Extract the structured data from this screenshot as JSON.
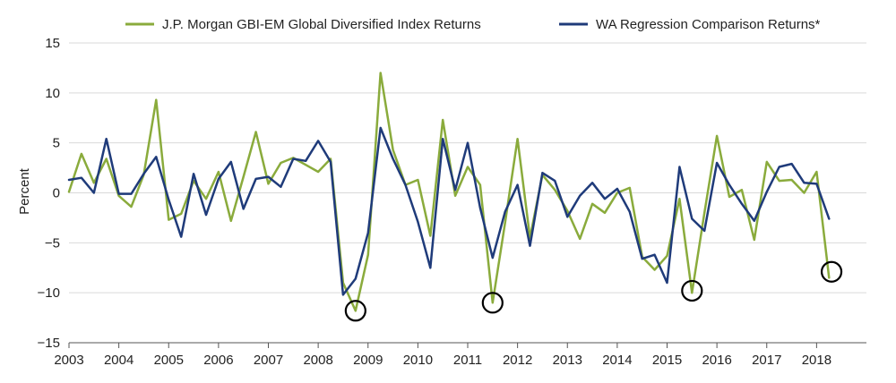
{
  "chart_data": {
    "type": "line",
    "title": "",
    "xlabel": "",
    "ylabel": "Percent",
    "ylim": [
      -15,
      15
    ],
    "yticks": [
      15,
      10,
      5,
      0,
      -5,
      -10,
      -15
    ],
    "yticks_labels": [
      "15",
      "10",
      "5",
      "0",
      "−5",
      "−10",
      "−15"
    ],
    "xlim": [
      2003,
      2019
    ],
    "xticks": [
      2003,
      2004,
      2005,
      2006,
      2007,
      2008,
      2009,
      2010,
      2011,
      2012,
      2013,
      2014,
      2015,
      2016,
      2017,
      2018
    ],
    "grid": "horizontal",
    "legend_position": "top",
    "colors": {
      "gbi": "#8aab3c",
      "wa": "#1f3b7a",
      "grid": "#d9d9d9",
      "circle": "#000000"
    },
    "series": [
      {
        "name": "J.P. Morgan GBI-EM Global Diversified Index Returns",
        "key": "gbi",
        "x": [
          2003.0,
          2003.25,
          2003.5,
          2003.75,
          2004.0,
          2004.25,
          2004.5,
          2004.75,
          2005.0,
          2005.25,
          2005.5,
          2005.75,
          2006.0,
          2006.25,
          2006.5,
          2006.75,
          2007.0,
          2007.25,
          2007.5,
          2007.75,
          2008.0,
          2008.25,
          2008.5,
          2008.75,
          2009.0,
          2009.25,
          2009.5,
          2009.75,
          2010.0,
          2010.25,
          2010.5,
          2010.75,
          2011.0,
          2011.25,
          2011.5,
          2011.75,
          2012.0,
          2012.25,
          2012.5,
          2012.75,
          2013.0,
          2013.25,
          2013.5,
          2013.75,
          2014.0,
          2014.25,
          2014.5,
          2014.75,
          2015.0,
          2015.25,
          2015.5,
          2015.75,
          2016.0,
          2016.25,
          2016.5,
          2016.75,
          2017.0,
          2017.25,
          2017.5,
          2017.75,
          2018.0,
          2018.25
        ],
        "values": [
          0.1,
          3.9,
          1.0,
          3.4,
          -0.3,
          -1.4,
          1.8,
          9.3,
          -2.7,
          -2.1,
          1.2,
          -0.6,
          2.1,
          -2.8,
          1.6,
          6.1,
          0.9,
          3.0,
          3.5,
          2.8,
          2.1,
          3.4,
          -9.0,
          -11.8,
          -6.2,
          12.0,
          4.3,
          0.8,
          1.3,
          -4.3,
          7.3,
          -0.3,
          2.6,
          0.8,
          -11.0,
          -3.0,
          5.4,
          -4.5,
          1.8,
          0.3,
          -1.8,
          -4.6,
          -1.1,
          -2.0,
          0.0,
          0.5,
          -6.4,
          -7.7,
          -6.3,
          -0.6,
          -10.0,
          -2.0,
          5.7,
          -0.4,
          0.3,
          -4.7,
          3.1,
          1.2,
          1.3,
          0.0,
          2.1,
          -8.5
        ]
      },
      {
        "name": "WA Regression Comparison Returns*",
        "key": "wa",
        "x": [
          2003.0,
          2003.25,
          2003.5,
          2003.75,
          2004.0,
          2004.25,
          2004.5,
          2004.75,
          2005.0,
          2005.25,
          2005.5,
          2005.75,
          2006.0,
          2006.25,
          2006.5,
          2006.75,
          2007.0,
          2007.25,
          2007.5,
          2007.75,
          2008.0,
          2008.25,
          2008.5,
          2008.75,
          2009.0,
          2009.25,
          2009.5,
          2009.75,
          2010.0,
          2010.25,
          2010.5,
          2010.75,
          2011.0,
          2011.25,
          2011.5,
          2011.75,
          2012.0,
          2012.25,
          2012.5,
          2012.75,
          2013.0,
          2013.25,
          2013.5,
          2013.75,
          2014.0,
          2014.25,
          2014.5,
          2014.75,
          2015.0,
          2015.25,
          2015.5,
          2015.75,
          2016.0,
          2016.25,
          2016.5,
          2016.75,
          2017.0,
          2017.25,
          2017.5,
          2017.75,
          2018.0,
          2018.25
        ],
        "values": [
          1.3,
          1.5,
          0.0,
          5.4,
          -0.1,
          -0.1,
          1.9,
          3.6,
          -0.7,
          -4.4,
          1.9,
          -2.2,
          1.4,
          3.1,
          -1.6,
          1.4,
          1.6,
          0.6,
          3.4,
          3.2,
          5.2,
          3.1,
          -10.2,
          -8.6,
          -4.0,
          6.5,
          3.4,
          0.8,
          -2.9,
          -7.5,
          5.4,
          0.3,
          5.0,
          -1.5,
          -6.5,
          -1.9,
          0.8,
          -5.3,
          2.0,
          1.2,
          -2.4,
          -0.3,
          1.0,
          -0.6,
          0.4,
          -1.9,
          -6.6,
          -6.2,
          -9.0,
          2.6,
          -2.6,
          -3.8,
          3.0,
          0.8,
          -1.1,
          -2.8,
          0.1,
          2.6,
          2.9,
          1.0,
          0.9,
          -2.6
        ]
      }
    ],
    "annotations": [
      {
        "type": "circle",
        "x": 2008.75,
        "y": -11.8
      },
      {
        "type": "circle",
        "x": 2011.5,
        "y": -11.0
      },
      {
        "type": "circle",
        "x": 2015.5,
        "y": -9.8
      },
      {
        "type": "circle",
        "x": 2018.3,
        "y": -7.9
      }
    ]
  }
}
